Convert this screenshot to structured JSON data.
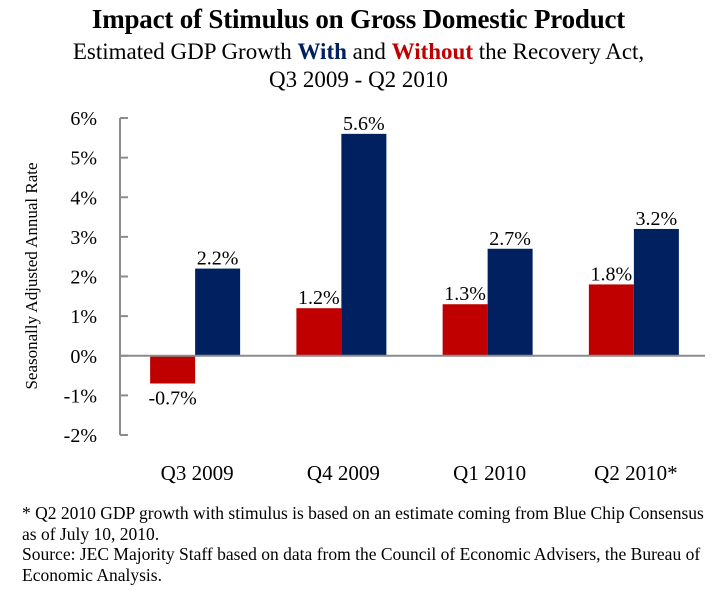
{
  "header": {
    "title": "Impact of Stimulus on Gross Domestic Product",
    "subtitle_pre": "Estimated GDP Growth ",
    "subtitle_with": "With",
    "subtitle_mid": " and ",
    "subtitle_without": "Without",
    "subtitle_post": " the Recovery Act,",
    "subtitle_line2": "Q3 2009 - Q2 2010"
  },
  "chart_data": {
    "type": "bar",
    "title": "Impact of Stimulus on Gross Domestic Product",
    "subtitle": "Estimated GDP Growth With and Without the Recovery Act, Q3 2009 - Q2 2010",
    "xlabel": "",
    "ylabel": "Seasonally Adjusted Annual Rate",
    "ylim": [
      -2,
      6
    ],
    "yticks": [
      -2,
      -1,
      0,
      1,
      2,
      3,
      4,
      5,
      6
    ],
    "ytick_labels": [
      "-2%",
      "-1%",
      "0%",
      "1%",
      "2%",
      "3%",
      "4%",
      "5%",
      "6%"
    ],
    "categories": [
      "Q3 2009",
      "Q4 2009",
      "Q1 2010",
      "Q2 2010*"
    ],
    "series": [
      {
        "name": "Without the Recovery Act",
        "color": "#c00000",
        "values": [
          -0.7,
          1.2,
          1.3,
          1.8
        ],
        "labels": [
          "-0.7%",
          "1.2%",
          "1.3%",
          "1.8%"
        ]
      },
      {
        "name": "With the Recovery Act",
        "color": "#002060",
        "values": [
          2.2,
          5.6,
          2.7,
          3.2
        ],
        "labels": [
          "2.2%",
          "5.6%",
          "2.7%",
          "3.2%"
        ]
      }
    ],
    "grid": false,
    "legend": "none (encoded in subtitle colors)"
  },
  "notes": {
    "footnote": "* Q2 2010 GDP growth with stimulus is based on an estimate coming from Blue Chip Consensus as of July 10, 2010.",
    "source": "Source: JEC Majority Staff based on data from the Council of Economic Advisers, the Bureau of Economic Analysis."
  }
}
